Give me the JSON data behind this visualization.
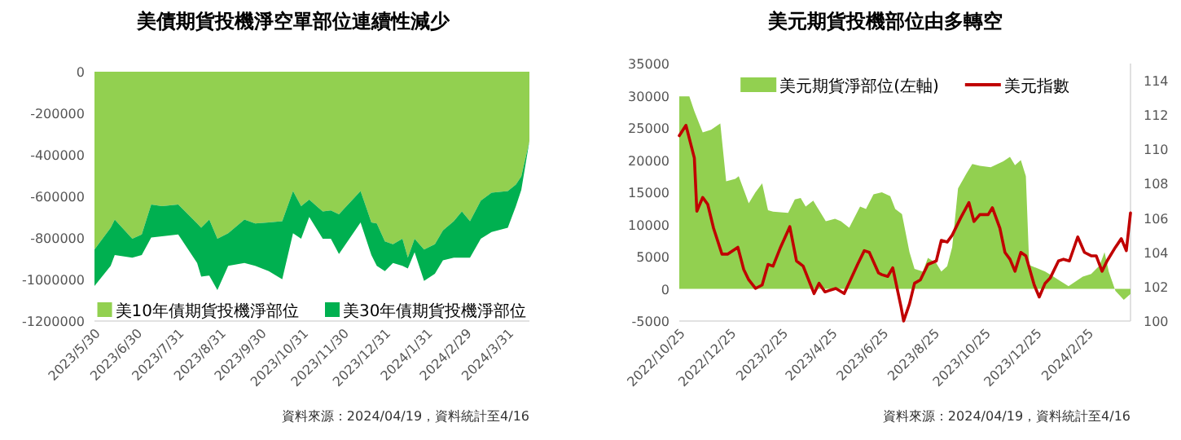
{
  "chart_data": [
    {
      "type": "area",
      "title": "美債期貨投機淨空單部位連續性減少",
      "stacked": true,
      "legend": "bottom",
      "x": [
        "2023-05-30",
        "2023-06-11",
        "2023-06-14",
        "2023-06-27",
        "2023-07-04",
        "2023-07-11",
        "2023-07-19",
        "2023-07-31",
        "2023-08-14",
        "2023-08-17",
        "2023-08-23",
        "2023-08-29",
        "2023-09-06",
        "2023-09-18",
        "2023-09-26",
        "2023-10-06",
        "2023-10-16",
        "2023-10-24",
        "2023-10-30",
        "2023-11-05",
        "2023-11-15",
        "2023-11-21",
        "2023-11-27",
        "2023-12-13",
        "2023-12-21",
        "2023-12-25",
        "2023-12-31",
        "2024-01-06",
        "2024-01-13",
        "2024-01-17",
        "2024-01-22",
        "2024-01-29",
        "2024-02-06",
        "2024-02-12",
        "2024-02-20",
        "2024-02-26",
        "2024-03-03",
        "2024-03-11",
        "2024-03-19",
        "2024-03-31",
        "2024-04-06",
        "2024-04-10",
        "2024-04-16"
      ],
      "series": [
        {
          "name": "美10年債期貨投機淨部位",
          "color": "#92d050",
          "values": [
            -856000,
            -751000,
            -712000,
            -804000,
            -783000,
            -639000,
            -647000,
            -639000,
            -730000,
            -751000,
            -712000,
            -804000,
            -777000,
            -712000,
            -730000,
            -725000,
            -720000,
            -574000,
            -647000,
            -616000,
            -673000,
            -668000,
            -686000,
            -574000,
            -725000,
            -730000,
            -817000,
            -830000,
            -804000,
            -895000,
            -804000,
            -856000,
            -830000,
            -764000,
            -720000,
            -673000,
            -720000,
            -621000,
            -582000,
            -574000,
            -543000,
            -504000,
            -334000
          ]
        },
        {
          "name": "美30年債期貨投機淨部位",
          "color": "#00b050",
          "values": [
            -175000,
            -183000,
            -170000,
            -91000,
            -99000,
            -159000,
            -145000,
            -144000,
            -191000,
            -235000,
            -269000,
            -247000,
            -157000,
            -209000,
            -204000,
            -235000,
            -279000,
            -203000,
            -157000,
            -83000,
            -131000,
            -136000,
            -191000,
            -151000,
            -157000,
            -204000,
            -143000,
            -91000,
            -130000,
            -52000,
            -65000,
            -151000,
            -143000,
            -144000,
            -175000,
            -222000,
            -175000,
            -183000,
            -190000,
            -177000,
            -104000,
            -65000,
            0
          ]
        }
      ],
      "xlim": [
        "2023-05-30",
        "2024-04-16"
      ],
      "xticks": [
        {
          "value": "2023-05-30",
          "label": "2023/5/30"
        },
        {
          "value": "2023-06-30",
          "label": "2023/6/30"
        },
        {
          "value": "2023-07-31",
          "label": "2023/7/31"
        },
        {
          "value": "2023-08-31",
          "label": "2023/8/31"
        },
        {
          "value": "2023-09-30",
          "label": "2023/9/30"
        },
        {
          "value": "2023-10-31",
          "label": "2023/10/31"
        },
        {
          "value": "2023-11-30",
          "label": "2023/11/30"
        },
        {
          "value": "2023-12-31",
          "label": "2023/12/31"
        },
        {
          "value": "2024-01-31",
          "label": "2024/1/31"
        },
        {
          "value": "2024-02-29",
          "label": "2024/2/29"
        },
        {
          "value": "2024-03-31",
          "label": "2024/3/31"
        }
      ],
      "ylim": [
        -1200000,
        0
      ],
      "yticks": [
        -1200000,
        -1000000,
        -800000,
        -600000,
        -400000,
        -200000,
        0
      ],
      "annotations": [
        "資料來源：2024/04/19，資料統計至4/16"
      ]
    },
    {
      "type": "area",
      "title": "美元期貨投機部位由多轉空",
      "legend": "top",
      "series": [
        {
          "name": "美元期貨淨部位(左軸)",
          "color": "#92d050",
          "x": [
            "2022-10-25",
            "2022-11-06",
            "2022-11-12",
            "2022-11-22",
            "2022-12-02",
            "2022-12-13",
            "2022-12-20",
            "2022-12-31",
            "2023-01-04",
            "2023-01-16",
            "2023-01-24",
            "2023-02-01",
            "2023-02-08",
            "2023-02-14",
            "2023-03-04",
            "2023-03-12",
            "2023-03-19",
            "2023-03-25",
            "2023-04-03",
            "2023-04-10",
            "2023-04-18",
            "2023-04-29",
            "2023-05-06",
            "2023-05-16",
            "2023-05-29",
            "2023-06-05",
            "2023-06-14",
            "2023-06-24",
            "2023-07-04",
            "2023-07-10",
            "2023-07-18",
            "2023-07-27",
            "2023-08-02",
            "2023-08-12",
            "2023-08-18",
            "2023-08-28",
            "2023-09-03",
            "2023-09-10",
            "2023-09-16",
            "2023-09-23",
            "2023-10-03",
            "2023-10-10",
            "2023-10-19",
            "2023-11-01",
            "2023-11-16",
            "2023-11-24",
            "2023-11-30",
            "2023-12-07",
            "2023-12-13",
            "2023-12-17",
            "2024-01-05",
            "2024-01-15",
            "2024-01-21",
            "2024-02-02",
            "2024-02-19",
            "2024-02-29",
            "2024-03-10",
            "2024-03-16",
            "2024-03-21",
            "2024-03-29",
            "2024-04-08",
            "2024-04-16"
          ],
          "values": [
            29900,
            29900,
            27600,
            24300,
            24700,
            25700,
            16700,
            17100,
            17500,
            13300,
            15000,
            16400,
            12200,
            12000,
            11800,
            13900,
            14100,
            12800,
            13700,
            12200,
            10500,
            10900,
            10500,
            9500,
            12800,
            12400,
            14700,
            15000,
            14400,
            12400,
            11600,
            5700,
            3100,
            2700,
            4800,
            4000,
            2700,
            3500,
            6500,
            15600,
            17900,
            19400,
            19100,
            18900,
            19800,
            20500,
            19200,
            20000,
            17500,
            3700,
            2700,
            1900,
            1400,
            400,
            1900,
            2300,
            3600,
            5700,
            2700,
            -300,
            -1700,
            -800
          ]
        },
        {
          "name": "美元指數",
          "type": "line",
          "axis": "y2",
          "color": "#c00000",
          "x": [
            "2022-10-25",
            "2022-11-02",
            "2022-11-12",
            "2022-11-15",
            "2022-11-22",
            "2022-11-28",
            "2022-12-05",
            "2022-12-15",
            "2022-12-22",
            "2023-01-03",
            "2023-01-10",
            "2023-01-16",
            "2023-01-24",
            "2023-02-01",
            "2023-02-08",
            "2023-02-14",
            "2023-02-23",
            "2023-03-06",
            "2023-03-14",
            "2023-03-22",
            "2023-04-04",
            "2023-04-10",
            "2023-04-17",
            "2023-04-30",
            "2023-05-10",
            "2023-05-26",
            "2023-06-03",
            "2023-06-09",
            "2023-06-20",
            "2023-06-24",
            "2023-07-01",
            "2023-07-07",
            "2023-07-17",
            "2023-07-20",
            "2023-07-27",
            "2023-08-02",
            "2023-08-09",
            "2023-08-18",
            "2023-08-28",
            "2023-09-03",
            "2023-09-10",
            "2023-09-16",
            "2023-09-26",
            "2023-10-06",
            "2023-10-12",
            "2023-10-19",
            "2023-10-29",
            "2023-11-03",
            "2023-11-12",
            "2023-11-18",
            "2023-11-24",
            "2023-11-30",
            "2023-12-07",
            "2023-12-13",
            "2023-12-23",
            "2023-12-29",
            "2024-01-05",
            "2024-01-11",
            "2024-01-21",
            "2024-01-27",
            "2024-02-03",
            "2024-02-13",
            "2024-02-21",
            "2024-02-29",
            "2024-03-06",
            "2024-03-13",
            "2024-03-19",
            "2024-03-29",
            "2024-04-05",
            "2024-04-11",
            "2024-04-16"
          ],
          "values": [
            110.8,
            111.4,
            109.5,
            106.4,
            107.2,
            106.8,
            105.4,
            103.9,
            103.9,
            104.3,
            103.0,
            102.4,
            101.9,
            102.1,
            103.3,
            103.2,
            104.3,
            105.5,
            103.5,
            103.2,
            101.6,
            102.2,
            101.7,
            101.9,
            101.6,
            103.3,
            104.1,
            104.0,
            102.8,
            102.7,
            102.6,
            103.1,
            100.8,
            100.0,
            101.0,
            102.2,
            102.4,
            103.3,
            103.5,
            104.7,
            104.6,
            105.0,
            106.0,
            106.9,
            105.8,
            106.2,
            106.2,
            106.6,
            105.4,
            104.0,
            103.6,
            102.9,
            104.0,
            103.8,
            102.1,
            101.4,
            102.2,
            102.5,
            103.5,
            103.6,
            103.5,
            104.9,
            104.0,
            103.8,
            103.8,
            102.9,
            103.5,
            104.3,
            104.8,
            104.1,
            106.3
          ]
        }
      ],
      "xlim": [
        "2022-10-25",
        "2024-04-16"
      ],
      "xticks": [
        {
          "value": "2022-10-25",
          "label": "2022/10/25"
        },
        {
          "value": "2022-12-25",
          "label": "2022/12/25"
        },
        {
          "value": "2023-02-25",
          "label": "2023/2/25"
        },
        {
          "value": "2023-04-25",
          "label": "2023/4/25"
        },
        {
          "value": "2023-06-25",
          "label": "2023/6/25"
        },
        {
          "value": "2023-08-25",
          "label": "2023/8/25"
        },
        {
          "value": "2023-10-25",
          "label": "2023/10/25"
        },
        {
          "value": "2023-12-25",
          "label": "2023/12/25"
        },
        {
          "value": "2024-02-25",
          "label": "2024/2/25"
        }
      ],
      "ylim": [
        -5000,
        35000
      ],
      "yticks": [
        -5000,
        0,
        5000,
        10000,
        15000,
        20000,
        25000,
        30000,
        35000
      ],
      "y2lim": [
        100,
        115
      ],
      "y2ticks": [
        100,
        102,
        104,
        106,
        108,
        110,
        112,
        114
      ],
      "annotations": [
        "資料來源：2024/04/19，資料統計至4/16"
      ]
    }
  ]
}
